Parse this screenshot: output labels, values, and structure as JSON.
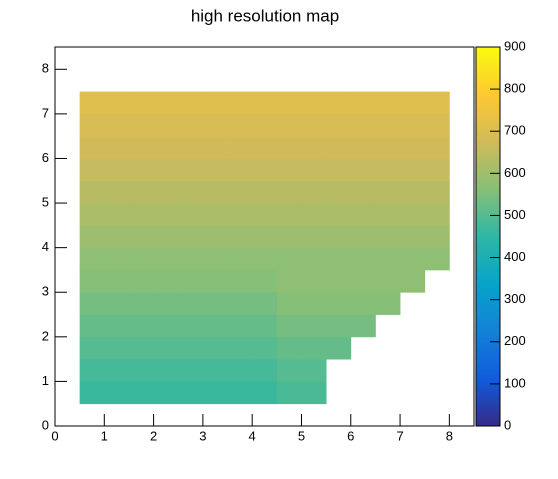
{
  "chart_data": {
    "type": "heatmap",
    "title": "high resolution map",
    "xbins": [
      0,
      0.5,
      1,
      1.5,
      2,
      2.5,
      3,
      3.5,
      4,
      4.5,
      5,
      5.5,
      6,
      6.5,
      7,
      7.5,
      8,
      8.5
    ],
    "ybins": [
      0,
      0.5,
      1,
      1.5,
      2,
      2.5,
      3,
      3.5,
      4,
      4.5,
      5,
      5.5,
      6,
      6.5,
      7,
      7.5,
      8,
      8.5
    ],
    "z": [
      [
        null,
        null,
        null,
        null,
        null,
        null,
        null,
        null,
        null,
        null,
        null,
        null,
        null,
        null,
        null,
        null,
        null
      ],
      [
        null,
        465,
        465,
        465,
        465,
        465,
        465,
        465,
        465,
        485,
        485,
        null,
        null,
        null,
        null,
        null,
        null
      ],
      [
        null,
        480,
        480,
        480,
        480,
        480,
        480,
        480,
        480,
        500,
        500,
        null,
        null,
        null,
        null,
        null,
        null
      ],
      [
        null,
        500,
        500,
        500,
        500,
        500,
        500,
        500,
        500,
        520,
        520,
        520,
        null,
        null,
        null,
        null,
        null
      ],
      [
        null,
        520,
        520,
        520,
        520,
        520,
        520,
        520,
        520,
        540,
        540,
        540,
        540,
        null,
        null,
        null,
        null
      ],
      [
        null,
        540,
        540,
        540,
        540,
        540,
        540,
        540,
        540,
        560,
        560,
        560,
        560,
        560,
        null,
        null,
        null
      ],
      [
        null,
        560,
        560,
        560,
        560,
        560,
        560,
        560,
        560,
        575,
        575,
        575,
        575,
        575,
        575,
        null,
        null
      ],
      [
        null,
        575,
        575,
        575,
        575,
        575,
        575,
        575,
        575,
        575,
        575,
        575,
        575,
        575,
        575,
        575,
        null
      ],
      [
        null,
        595,
        595,
        595,
        595,
        595,
        595,
        595,
        595,
        595,
        595,
        595,
        595,
        595,
        595,
        595,
        null
      ],
      [
        null,
        615,
        615,
        615,
        615,
        615,
        615,
        615,
        615,
        615,
        615,
        615,
        615,
        615,
        615,
        615,
        null
      ],
      [
        null,
        635,
        635,
        635,
        635,
        635,
        635,
        635,
        635,
        635,
        635,
        635,
        635,
        635,
        635,
        635,
        null
      ],
      [
        null,
        655,
        655,
        655,
        655,
        655,
        655,
        655,
        655,
        655,
        655,
        655,
        655,
        655,
        655,
        655,
        null
      ],
      [
        null,
        675,
        675,
        675,
        675,
        675,
        675,
        675,
        675,
        675,
        675,
        675,
        675,
        675,
        675,
        675,
        null
      ],
      [
        null,
        690,
        690,
        690,
        690,
        690,
        690,
        690,
        690,
        690,
        690,
        690,
        690,
        690,
        690,
        690,
        null
      ],
      [
        null,
        710,
        710,
        710,
        710,
        710,
        710,
        710,
        710,
        710,
        710,
        710,
        710,
        710,
        710,
        710,
        null
      ],
      [
        null,
        null,
        null,
        null,
        null,
        null,
        null,
        null,
        null,
        null,
        null,
        null,
        null,
        null,
        null,
        null,
        null
      ],
      [
        null,
        null,
        null,
        null,
        null,
        null,
        null,
        null,
        null,
        null,
        null,
        null,
        null,
        null,
        null,
        null,
        null
      ]
    ],
    "xlim": [
      0,
      8.5
    ],
    "ylim": [
      0,
      8.5
    ],
    "zlim": [
      0,
      900
    ],
    "xticks": [
      0,
      1,
      2,
      3,
      4,
      5,
      6,
      7,
      8
    ],
    "yticks": [
      0,
      1,
      2,
      3,
      4,
      5,
      6,
      7,
      8
    ],
    "zticks": [
      0,
      100,
      200,
      300,
      400,
      500,
      600,
      700,
      800,
      900
    ],
    "colorscale": [
      "#352a87",
      "#0f5cdd",
      "#1481d6",
      "#06a4ca",
      "#2eb7a4",
      "#87bf77",
      "#d1bb59",
      "#fec832",
      "#f9fb0e"
    ]
  }
}
